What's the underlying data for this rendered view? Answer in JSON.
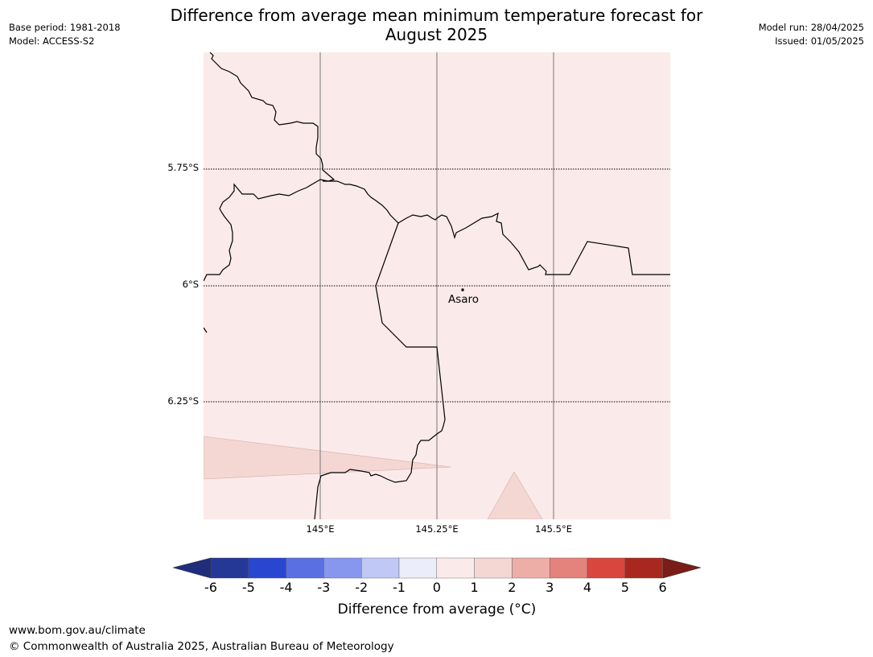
{
  "title": "Difference from average mean minimum temperature forecast for August 2025",
  "title_line1": "Difference from average mean minimum temperature forecast for",
  "title_line2": "August 2025",
  "meta": {
    "base_period": "Base period: 1981-2018",
    "model": "Model: ACCESS-S2",
    "model_run": "Model run: 28/04/2025",
    "issued": "Issued: 01/05/2025"
  },
  "map": {
    "lat_labels": [
      "5.75°S",
      "6°S",
      "6.25°S"
    ],
    "lon_labels": [
      "145°E",
      "145.25°E",
      "145.5°E"
    ],
    "place": "Asaro",
    "base_fill_color": "#fbeaea",
    "anomaly_fill_color": "#f4d6d3",
    "border_color": "#000000"
  },
  "colorbar": {
    "ticks": [
      "-6",
      "-5",
      "-4",
      "-3",
      "-2",
      "-1",
      "0",
      "1",
      "2",
      "3",
      "4",
      "5",
      "6"
    ],
    "colors": [
      "#263896",
      "#2946d1",
      "#5a70e2",
      "#8797ed",
      "#c0c8f5",
      "#ebedfb",
      "#fbeaea",
      "#f4d6d3",
      "#edaea8",
      "#e4827c",
      "#d9463e",
      "#a8281f"
    ],
    "under_color": "#1f2d7a",
    "over_color": "#7a1c17",
    "label": "Difference from average (°C)"
  },
  "footer": {
    "url": "www.bom.gov.au/climate",
    "copyright": "© Commonwealth of Australia 2025, Australian Bureau of Meteorology"
  }
}
